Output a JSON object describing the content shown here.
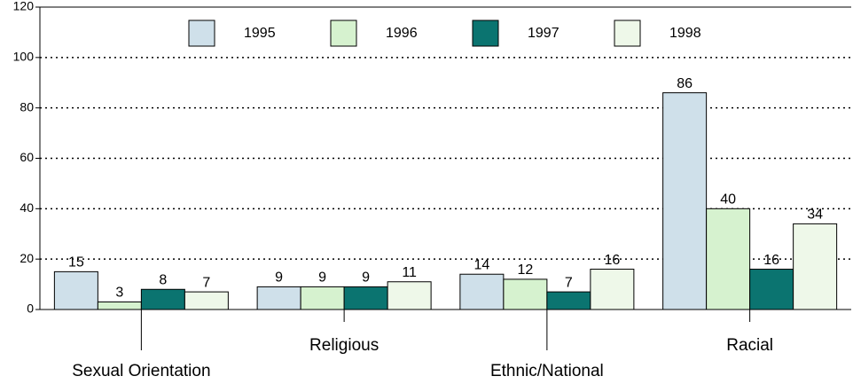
{
  "chart_data": {
    "type": "bar",
    "categories": [
      "Sexual Orientation",
      "Religious",
      "Ethnic/National",
      "Racial"
    ],
    "series": [
      {
        "name": "1995",
        "color": "#cfe0ea",
        "values": [
          15,
          9,
          14,
          86
        ]
      },
      {
        "name": "1996",
        "color": "#d6f2cf",
        "values": [
          3,
          9,
          12,
          40
        ]
      },
      {
        "name": "1997",
        "color": "#0b7470",
        "values": [
          8,
          9,
          7,
          16
        ]
      },
      {
        "name": "1998",
        "color": "#eef8e9",
        "values": [
          7,
          11,
          16,
          34
        ]
      }
    ],
    "ylim": [
      0,
      120
    ],
    "yticks": [
      0,
      20,
      40,
      60,
      80,
      100,
      120
    ],
    "grid": true,
    "legend": "top",
    "data_labels": true
  }
}
